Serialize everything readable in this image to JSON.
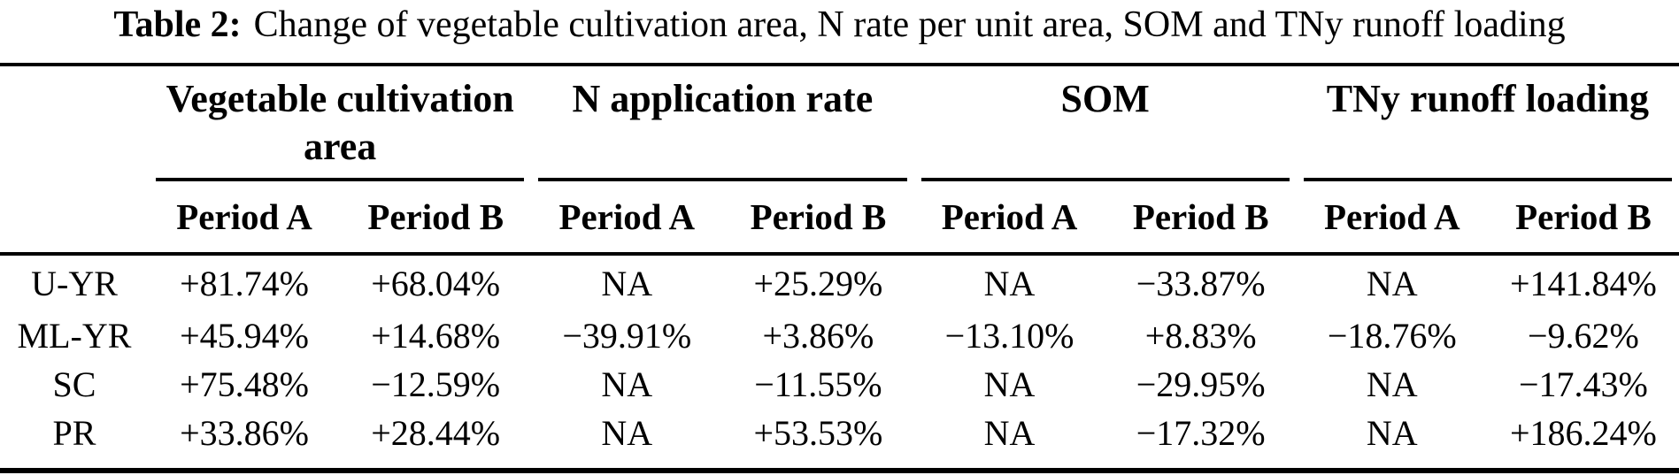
{
  "caption": {
    "label": "Table 2:",
    "text": "Change of vegetable cultivation area, N rate per unit area, SOM and TNy runoff loading"
  },
  "header": {
    "groups": [
      {
        "label": "Vegetable cultivation area"
      },
      {
        "label": "N application rate"
      },
      {
        "label": "SOM"
      },
      {
        "label": "TNy runoff loading"
      }
    ],
    "period_a": "Period A",
    "period_b": "Period B"
  },
  "rows": [
    {
      "label": "U-YR",
      "values": [
        "+81.74%",
        "+68.04%",
        "NA",
        "+25.29%",
        "NA",
        "−33.87%",
        "NA",
        "+141.84%"
      ]
    },
    {
      "label": "ML-YR",
      "values": [
        "+45.94%",
        "+14.68%",
        "−39.91%",
        "+3.86%",
        "−13.10%",
        "+8.83%",
        "−18.76%",
        "−9.62%"
      ]
    },
    {
      "label": "SC",
      "values": [
        "+75.48%",
        "−12.59%",
        "NA",
        "−11.55%",
        "NA",
        "−29.95%",
        "NA",
        "−17.43%"
      ]
    },
    {
      "label": "PR",
      "values": [
        "+33.86%",
        "+28.44%",
        "NA",
        "+53.53%",
        "NA",
        "−17.32%",
        "NA",
        "+186.24%"
      ]
    }
  ],
  "colors": {
    "text": "#000000",
    "background": "#ffffff",
    "rule": "#000000"
  }
}
